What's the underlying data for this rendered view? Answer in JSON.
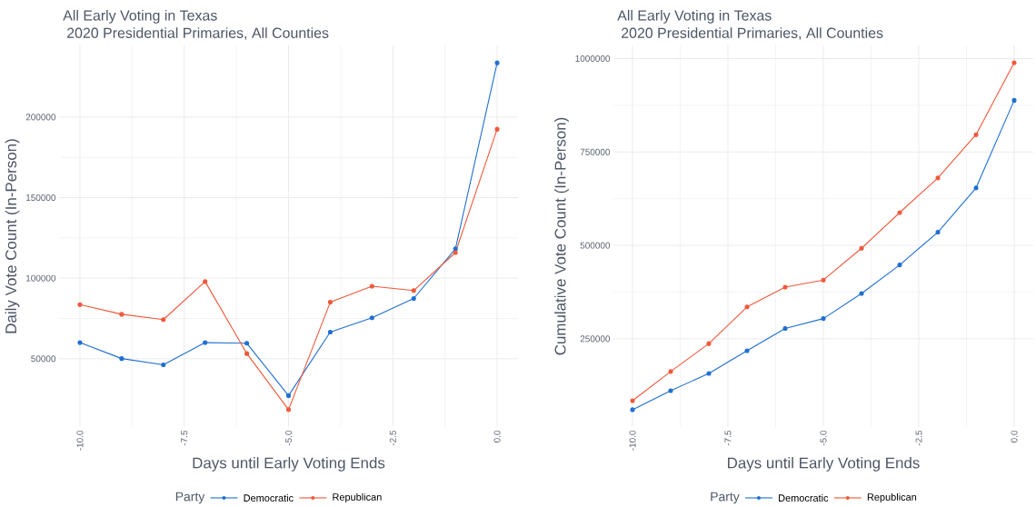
{
  "chart_data": [
    {
      "type": "line",
      "title": "All Early Voting in Texas",
      "subtitle": "2020 Presidential Primaries, All Counties",
      "xlabel": "Days until Early Voting Ends",
      "ylabel": "Daily Vote Count (In-Person)",
      "legend_title": "Party",
      "x": [
        -10,
        -9,
        -8,
        -7,
        -6,
        -5,
        -4,
        -3,
        -2,
        -1,
        0
      ],
      "series": [
        {
          "name": "Democratic",
          "color": "#1f6fd1",
          "values": [
            60000,
            50100,
            46200,
            60000,
            59600,
            27100,
            66500,
            75400,
            87400,
            118200,
            233700
          ]
        },
        {
          "name": "Republican",
          "color": "#f0583a",
          "values": [
            83600,
            77600,
            74300,
            97900,
            53200,
            18400,
            85100,
            95000,
            92300,
            115900,
            192500
          ]
        }
      ],
      "xlim": [
        -10.5,
        0.5
      ],
      "ylim": [
        7600,
        244500
      ],
      "xticks": [
        {
          "value": -10,
          "label": "-10.0"
        },
        {
          "value": -7.5,
          "label": "-7.5"
        },
        {
          "value": -5,
          "label": "-5.0"
        },
        {
          "value": -2.5,
          "label": "-2.5"
        },
        {
          "value": 0,
          "label": "0.0"
        }
      ],
      "yticks": [
        50000,
        100000,
        150000,
        200000
      ],
      "grid": true,
      "legend": "bottom",
      "marker": "circle",
      "line_style": "solid"
    },
    {
      "type": "line",
      "title": "All Early Voting in Texas",
      "subtitle": "2020 Presidential Primaries, All Counties",
      "xlabel": "Days until Early Voting Ends",
      "ylabel": "Cumulative Vote Count (In-Person)",
      "legend_title": "Party",
      "x": [
        -10,
        -9,
        -8,
        -7,
        -6,
        -5,
        -4,
        -3,
        -2,
        -1,
        0
      ],
      "series": [
        {
          "name": "Democratic",
          "color": "#1f6fd1",
          "values": [
            60300,
            111000,
            157300,
            218300,
            277600,
            304200,
            371200,
            447700,
            535300,
            653800,
            888300
          ]
        },
        {
          "name": "Republican",
          "color": "#f0583a",
          "values": [
            84300,
            162500,
            237200,
            335300,
            388400,
            407300,
            492300,
            587700,
            680500,
            796400,
            988800
          ]
        }
      ],
      "xlim": [
        -10.5,
        0.5
      ],
      "ylim": [
        13900,
        1035200
      ],
      "xticks": [
        {
          "value": -10,
          "label": "-10.0"
        },
        {
          "value": -7.5,
          "label": "-7.5"
        },
        {
          "value": -5,
          "label": "-5.0"
        },
        {
          "value": -2.5,
          "label": "-2.5"
        },
        {
          "value": 0,
          "label": "0.0"
        }
      ],
      "yticks": [
        250000,
        500000,
        750000,
        1000000
      ],
      "grid": true,
      "legend": "bottom",
      "marker": "circle",
      "line_style": "solid"
    }
  ]
}
